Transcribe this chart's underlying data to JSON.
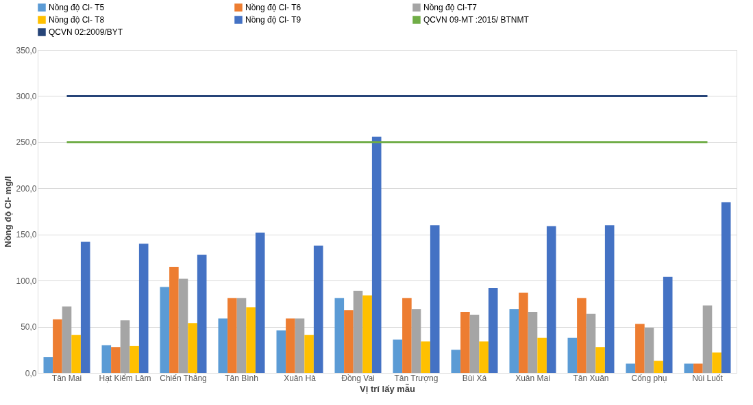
{
  "chart_data": {
    "type": "bar",
    "categories": [
      "Tân Mai",
      "Hạt Kiểm Lâm",
      "Chiến Thắng",
      "Tân Bình",
      "Xuân Hà",
      "Đồng Vai",
      "Tân Trượng",
      "Bùi Xá",
      "Xuân Mai",
      "Tân Xuân",
      "Cống phụ",
      "Núi Luốt"
    ],
    "series": [
      {
        "name": "Nồng độ Cl- T5",
        "color": "#5b9bd5",
        "values": [
          17,
          30,
          93,
          59,
          46,
          81,
          36,
          25,
          69,
          38,
          10,
          10
        ]
      },
      {
        "name": "Nồng độ Cl- T6",
        "color": "#ed7d31",
        "values": [
          58,
          28,
          115,
          81,
          59,
          68,
          81,
          66,
          87,
          81,
          53,
          10
        ]
      },
      {
        "name": "Nồng độ Cl-T7",
        "color": "#a5a5a5",
        "values": [
          72,
          57,
          102,
          81,
          59,
          89,
          69,
          63,
          66,
          64,
          49,
          73
        ]
      },
      {
        "name": "Nồng độ Cl- T8",
        "color": "#ffc000",
        "values": [
          41,
          29,
          54,
          71,
          41,
          84,
          34,
          34,
          38,
          28,
          13,
          22
        ]
      },
      {
        "name": "Nồng độ Cl- T9",
        "color": "#4472c4",
        "values": [
          142,
          140,
          128,
          152,
          138,
          256,
          160,
          92,
          159,
          160,
          104,
          185
        ]
      },
      {
        "type": "line",
        "name": "QCVN 09-MT :2015/ BTNMT",
        "color": "#70ad47",
        "values": [
          250,
          250,
          250,
          250,
          250,
          250,
          250,
          250,
          250,
          250,
          250,
          250
        ]
      },
      {
        "type": "line",
        "name": "QCVN 02:2009/BYT",
        "color": "#264478",
        "values": [
          300,
          300,
          300,
          300,
          300,
          300,
          300,
          300,
          300,
          300,
          300,
          300
        ]
      }
    ],
    "xlabel": "Vị trí lấy mẫu",
    "ylabel": "Nồng độ Cl- mg/l",
    "ylim": [
      0,
      350
    ],
    "yticks": [
      {
        "value": 0,
        "label": "0,0"
      },
      {
        "value": 50,
        "label": "50,0"
      },
      {
        "value": 100,
        "label": "100,0"
      },
      {
        "value": 150,
        "label": "150,0"
      },
      {
        "value": 200,
        "label": "200,0"
      },
      {
        "value": 250,
        "label": "250,0"
      },
      {
        "value": 300,
        "label": "300,0"
      },
      {
        "value": 350,
        "label": "350,0"
      }
    ],
    "grid": "y",
    "legend": "top"
  }
}
